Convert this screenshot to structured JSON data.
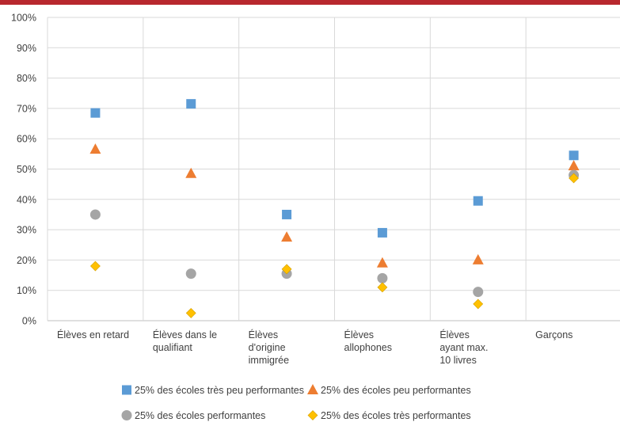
{
  "colors": {
    "top_bar": "#b8282e",
    "grid": "#d9d9d9",
    "axis": "#bfbfbf",
    "text": "#404040"
  },
  "chart_data": {
    "type": "scatter",
    "title": "",
    "xlabel": "",
    "ylabel": "",
    "ylim": [
      0,
      100
    ],
    "y_unit": "%",
    "y_ticks": [
      "0%",
      "10%",
      "20%",
      "30%",
      "40%",
      "50%",
      "60%",
      "70%",
      "80%",
      "90%",
      "100%"
    ],
    "grid": true,
    "legend_position": "bottom",
    "categories": [
      "Élèves en retard",
      "Élèves dans le qualifiant",
      "Élèves d'origine immigrée",
      "Élèves allophones",
      "Élèves ayant max. 10 livres",
      "Garçons"
    ],
    "category_lines": [
      [
        "Élèves en retard"
      ],
      [
        "Élèves dans le",
        "qualifiant"
      ],
      [
        "Élèves",
        "d'origine",
        "immigrée"
      ],
      [
        "Élèves",
        "allophones"
      ],
      [
        "Élèves",
        "ayant max.",
        "10 livres"
      ],
      [
        "Garçons"
      ]
    ],
    "series": [
      {
        "name": "25% des écoles très peu performantes",
        "marker": "square",
        "color": "#5b9bd5",
        "values": [
          68.5,
          71.5,
          35,
          29,
          39.5,
          54.5
        ]
      },
      {
        "name": "25% des écoles peu performantes",
        "marker": "triangle",
        "color": "#ed7d31",
        "values": [
          56.5,
          48.5,
          27.5,
          19,
          20,
          51
        ]
      },
      {
        "name": "25% des écoles performantes",
        "marker": "circle",
        "color": "#a5a5a5",
        "values": [
          35,
          15.5,
          15.5,
          14,
          9.5,
          48
        ]
      },
      {
        "name": "25% des écoles très performantes",
        "marker": "diamond",
        "color": "#ffc000",
        "values": [
          18,
          2.5,
          17,
          11,
          5.5,
          47
        ]
      }
    ]
  }
}
